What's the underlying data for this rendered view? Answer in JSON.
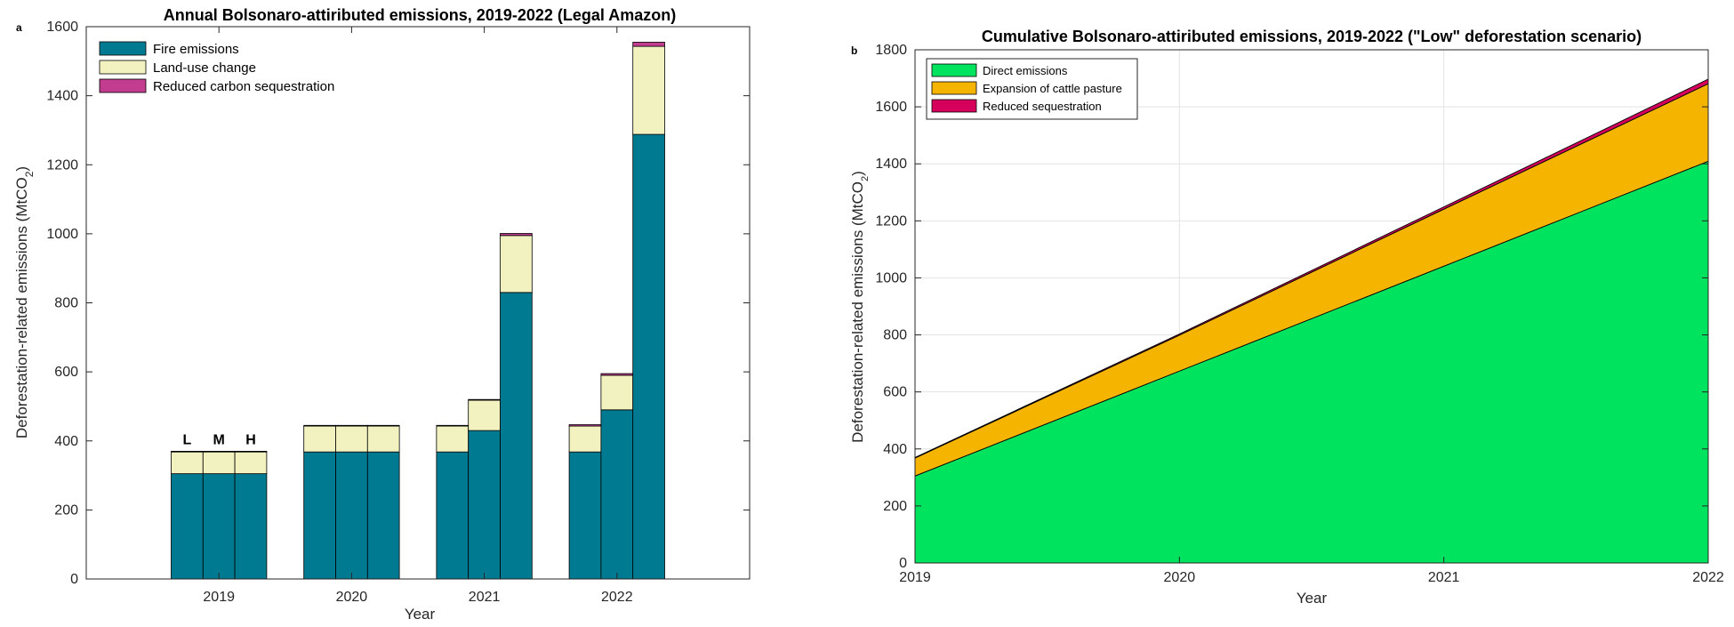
{
  "chart_data": [
    {
      "type": "bar",
      "panel_label": "a",
      "title": "Annual Bolsonaro-attiributed emissions, 2019-2022 (Legal Amazon)",
      "xlabel": "Year",
      "ylabel_main": "Deforestation-related emissions (MtCO",
      "ylabel_sub": "2",
      "ylabel_close": ")",
      "ylim": [
        0,
        1600
      ],
      "yticks": [
        0,
        200,
        400,
        600,
        800,
        1000,
        1200,
        1400,
        1600
      ],
      "categories": [
        "2019",
        "2020",
        "2021",
        "2022"
      ],
      "bars_per_category": [
        "L",
        "M",
        "H"
      ],
      "annotations": [
        "L",
        "M",
        "H"
      ],
      "legend_position": "top-left",
      "series": [
        {
          "name": "Fire emissions",
          "color": "#007a91",
          "values": [
            [
              305,
              305,
              305
            ],
            [
              368,
              368,
              368
            ],
            [
              368,
              430,
              830
            ],
            [
              368,
              490,
              1288
            ]
          ]
        },
        {
          "name": "Land-use change",
          "color": "#f2f2c0",
          "values": [
            [
              63,
              63,
              63
            ],
            [
              75,
              75,
              75
            ],
            [
              75,
              88,
              165
            ],
            [
              75,
              100,
              255
            ]
          ]
        },
        {
          "name": "Reduced carbon sequestration",
          "color": "#c23c8f",
          "values": [
            [
              2,
              2,
              2
            ],
            [
              2,
              2,
              2
            ],
            [
              2,
              2,
              6
            ],
            [
              4,
              5,
              12
            ]
          ]
        }
      ]
    },
    {
      "type": "area",
      "panel_label": "b",
      "title": "Cumulative Bolsonaro-attiributed emissions, 2019-2022 (\"Low\" deforestation scenario)",
      "xlabel": "Year",
      "ylabel_main": "Deforestation-related emissions (MtCO",
      "ylabel_sub": "2",
      "ylabel_close": ")",
      "xlim": [
        2019,
        2022
      ],
      "ylim": [
        0,
        1800
      ],
      "xticks": [
        2019,
        2020,
        2021,
        2022
      ],
      "yticks": [
        0,
        200,
        400,
        600,
        800,
        1000,
        1200,
        1400,
        1600,
        1800
      ],
      "grid": true,
      "legend_position": "top-left",
      "x": [
        2019,
        2020,
        2021,
        2022
      ],
      "series": [
        {
          "name": "Direct emissions",
          "color": "#00e35e",
          "values": [
            305,
            673,
            1041,
            1409
          ]
        },
        {
          "name": "Expansion of cattle pasture",
          "color": "#f4b400",
          "values": [
            63,
            126,
            200,
            272
          ]
        },
        {
          "name": "Reduced sequestration",
          "color": "#d6005c",
          "values": [
            2,
            4,
            8,
            16
          ]
        }
      ]
    }
  ]
}
